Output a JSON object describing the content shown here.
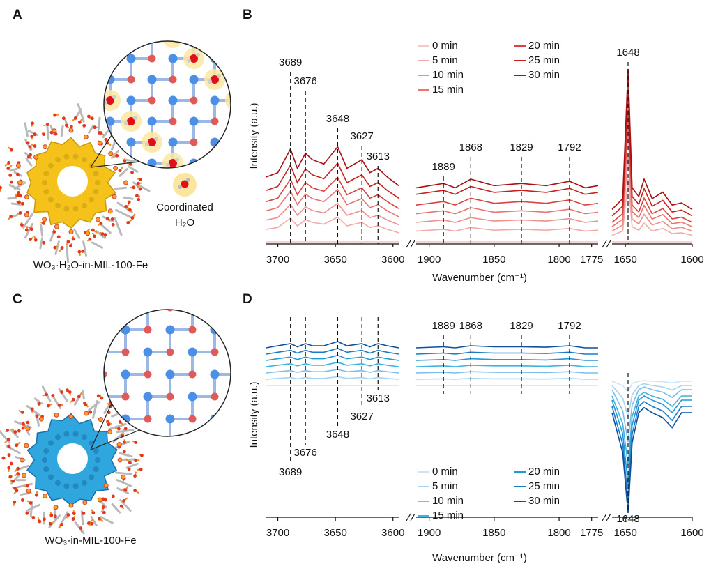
{
  "panel_a": {
    "letter": "A",
    "caption": "WO₃·H₂O-in-MIL-100-Fe",
    "annotation": [
      "Coordinated",
      "H₂O"
    ]
  },
  "panel_c": {
    "letter": "C",
    "caption": "WO₃-in-MIL-100-Fe"
  },
  "chart_data": [
    {
      "type": "line",
      "letter": "B",
      "ylabel": "Intensity (a.u.)",
      "xlabel": "Wavenumber (cm⁻¹)",
      "ylim": [
        0,
        100
      ],
      "segments": [
        {
          "xlim": [
            3710,
            3595
          ],
          "xticks": [
            3700,
            3650,
            3600
          ],
          "x": [
            3710,
            3700,
            3689,
            3683,
            3676,
            3670,
            3660,
            3648,
            3640,
            3627,
            3620,
            3613,
            3605,
            3595
          ]
        },
        {
          "xlim": [
            1910,
            1770
          ],
          "xticks": [
            1900,
            1850,
            1800,
            1775
          ],
          "x": [
            1910,
            1889,
            1880,
            1868,
            1850,
            1829,
            1810,
            1792,
            1780,
            1770
          ]
        },
        {
          "xlim": [
            1660,
            1600
          ],
          "xticks": [
            1650,
            1600
          ],
          "x": [
            1660,
            1652,
            1648,
            1645,
            1640,
            1636,
            1630,
            1622,
            1615,
            1608,
            1600
          ]
        }
      ],
      "peaks": [
        3689,
        3676,
        3648,
        3627,
        3613,
        1889,
        1868,
        1829,
        1792,
        1648
      ],
      "series": [
        {
          "name": "0 min",
          "color": "#f6c9c9",
          "values": [
            [
              1,
              1,
              1,
              1,
              1,
              1,
              1,
              1,
              1,
              1,
              1,
              1,
              1,
              1
            ],
            [
              1,
              1,
              1,
              1,
              1,
              1,
              1,
              1,
              1,
              1
            ],
            [
              1,
              1,
              1,
              1,
              1,
              1,
              1,
              1,
              1,
              1,
              1
            ]
          ]
        },
        {
          "name": "5 min",
          "color": "#f2aaa8",
          "values": [
            [
              6.8,
              7.6,
              12,
              8.4,
              11.2,
              10,
              9.2,
              12.4,
              8.4,
              10,
              7.6,
              8.4,
              6.8,
              5.2
            ],
            [
              6,
              6.8,
              6,
              7.6,
              6.4,
              6.8,
              6.4,
              7.2,
              6,
              6.4
            ],
            [
              4,
              6,
              30,
              8,
              6.4,
              9.6,
              6,
              7.2,
              4.8,
              5.2,
              4
            ]
          ]
        },
        {
          "name": "10 min",
          "color": "#ee8f8c",
          "values": [
            [
              11.1,
              12.2,
              18.3,
              13.3,
              17.2,
              15.5,
              14.4,
              18.8,
              13.3,
              15.5,
              12.2,
              13.3,
              11.1,
              8.9
            ],
            [
              10,
              11.1,
              10,
              12.2,
              10.6,
              11.1,
              10.6,
              11.7,
              10,
              10.6
            ],
            [
              6,
              8.8,
              41.8,
              11.5,
              9.3,
              13.7,
              8.8,
              10.4,
              7.1,
              7.7,
              6
            ]
          ]
        },
        {
          "name": "15 min",
          "color": "#e97470",
          "values": [
            [
              15.4,
              16.8,
              24.5,
              18.2,
              23.1,
              21,
              19.6,
              25.2,
              18.2,
              21,
              16.8,
              18.2,
              15.4,
              12.6
            ],
            [
              14,
              15.4,
              14,
              16.8,
              14.7,
              15.4,
              14.7,
              16.1,
              14,
              14.7
            ],
            [
              8,
              11.5,
              53.5,
              15,
              12.2,
              17.8,
              11.5,
              13.6,
              9.4,
              10.1,
              8
            ]
          ]
        },
        {
          "name": "20 min",
          "color": "#d9423f",
          "values": [
            [
              19.6,
              21.2,
              30,
              22.8,
              28.4,
              26,
              24.4,
              30.8,
              22.8,
              26,
              21.2,
              22.8,
              19.6,
              16.4
            ],
            [
              18,
              19.6,
              18,
              21.2,
              18.8,
              19.6,
              18.8,
              20.4,
              18,
              18.8
            ],
            [
              10,
              14,
              62,
              18,
              14.8,
              21.2,
              14,
              16.4,
              11.6,
              12.4,
              10
            ]
          ]
        },
        {
          "name": "25 min",
          "color": "#c8201f",
          "values": [
            [
              24.8,
              26.6,
              36.5,
              28.4,
              34.7,
              32,
              30.2,
              37.4,
              28.4,
              32,
              26.6,
              28.4,
              24.8,
              21.2
            ],
            [
              23,
              24.8,
              23,
              26.6,
              23.9,
              24.8,
              23.9,
              25.7,
              23,
              23.9
            ],
            [
              13,
              17.5,
              71.5,
              22,
              18.4,
              25.6,
              17.5,
              20.2,
              14.8,
              15.7,
              13
            ]
          ]
        },
        {
          "name": "30 min",
          "color": "#a80f14",
          "values": [
            [
              31,
              33,
              44,
              35,
              42,
              39,
              37,
              45,
              35,
              39,
              33,
              35,
              31,
              27
            ],
            [
              26,
              28,
              26,
              30,
              27,
              28,
              27,
              29,
              26,
              27
            ],
            [
              16,
              21,
              81,
              26,
              22,
              30,
              21,
              24,
              18,
              19,
              16
            ]
          ]
        }
      ]
    },
    {
      "type": "line",
      "letter": "D",
      "ylabel": "Intensity (a.u.)",
      "xlabel": "Wavenumber (cm⁻¹)",
      "ylim": [
        0,
        100
      ],
      "segments": [
        {
          "xlim": [
            3710,
            3595
          ],
          "xticks": [
            3700,
            3650,
            3600
          ],
          "x": [
            3710,
            3700,
            3689,
            3683,
            3676,
            3670,
            3660,
            3648,
            3640,
            3627,
            3620,
            3613,
            3605,
            3595
          ]
        },
        {
          "xlim": [
            1910,
            1770
          ],
          "xticks": [
            1900,
            1850,
            1800,
            1775
          ],
          "x": [
            1910,
            1889,
            1880,
            1868,
            1850,
            1829,
            1810,
            1792,
            1780,
            1770
          ]
        },
        {
          "xlim": [
            1660,
            1600
          ],
          "xticks": [
            1650,
            1600
          ],
          "x": [
            1660,
            1652,
            1648,
            1645,
            1640,
            1636,
            1630,
            1622,
            1615,
            1608,
            1600
          ]
        }
      ],
      "peaks": [
        3689,
        3676,
        3648,
        3627,
        3613,
        1889,
        1868,
        1829,
        1792,
        1648
      ],
      "series": [
        {
          "name": "0 min",
          "color": "#cde4f5",
          "values": [
            [
              63,
              63,
              63,
              63,
              63,
              63,
              63,
              63,
              63,
              63,
              63,
              63,
              63,
              63
            ],
            [
              63,
              63,
              63,
              63,
              63,
              63,
              63,
              63,
              63,
              63
            ],
            [
              65,
              63,
              60,
              64,
              65,
              65.3,
              65,
              64.8,
              64.2,
              65,
              65
            ]
          ]
        },
        {
          "name": "5 min",
          "color": "#a9d3f0",
          "values": [
            [
              66,
              66.4,
              66.8,
              66.2,
              66.8,
              66.4,
              66.4,
              67.2,
              66.4,
              66.8,
              66.2,
              66.8,
              66.4,
              66
            ],
            [
              66,
              66.2,
              66,
              66.4,
              66.2,
              66.2,
              66.1,
              66.4,
              66,
              66
            ],
            [
              63,
              57,
              48,
              58.5,
              63,
              63.8,
              63,
              62.3,
              60.8,
              63,
              63
            ]
          ]
        },
        {
          "name": "10 min",
          "color": "#7fbde8",
          "values": [
            [
              69,
              69.6,
              70.1,
              69.3,
              70.1,
              69.6,
              69.6,
              70.7,
              69.6,
              70.1,
              69.3,
              70.1,
              69.6,
              69
            ],
            [
              69,
              69.3,
              69,
              69.6,
              69.3,
              69.3,
              69.2,
              69.6,
              69,
              69
            ],
            [
              61,
              51,
              36,
              53.5,
              61,
              62.3,
              61,
              59.8,
              57.3,
              61,
              61
            ]
          ]
        },
        {
          "name": "15 min",
          "color": "#3eb2e0",
          "values": [
            [
              72,
              72.7,
              73.4,
              72.4,
              73.4,
              72.7,
              72.7,
              74.1,
              72.7,
              73.4,
              72.4,
              73.4,
              72.7,
              72
            ],
            [
              72,
              72.4,
              72,
              72.7,
              72.4,
              72.4,
              72.2,
              72.7,
              72,
              72
            ],
            [
              58,
              44.8,
              25,
              48.1,
              58,
              59.7,
              58,
              56.4,
              53,
              58,
              58
            ]
          ]
        },
        {
          "name": "20 min",
          "color": "#1f9ad6",
          "values": [
            [
              75,
              75.8,
              76.6,
              75.4,
              76.6,
              75.8,
              75.8,
              77.4,
              75.8,
              76.6,
              75.4,
              76.6,
              75.8,
              75
            ],
            [
              75,
              75.4,
              75,
              75.8,
              75.4,
              75.4,
              75.2,
              75.8,
              75,
              75
            ],
            [
              56,
              40,
              16,
              44,
              56,
              58,
              56,
              54,
              50,
              56,
              56
            ]
          ]
        },
        {
          "name": "25 min",
          "color": "#1a7bc8",
          "values": [
            [
              78,
              78.9,
              79.8,
              78.5,
              79.8,
              78.9,
              78.9,
              80.7,
              78.9,
              79.8,
              78.5,
              79.8,
              78.9,
              78
            ],
            [
              78,
              78.5,
              78,
              78.9,
              78.5,
              78.5,
              78.3,
              78.9,
              78,
              78
            ],
            [
              53,
              35,
              8,
              39.5,
              53,
              55.3,
              53,
              50.8,
              46.3,
              53,
              53
            ]
          ]
        },
        {
          "name": "30 min",
          "color": "#0d4fa0",
          "values": [
            [
              81,
              82,
              83,
              81.5,
              83,
              82,
              82,
              84,
              82,
              83,
              81.5,
              83,
              82,
              81
            ],
            [
              81,
              81.5,
              81,
              82,
              81.5,
              81.5,
              81.3,
              82,
              81,
              81
            ],
            [
              50,
              30.8,
              2,
              35.6,
              50,
              52.4,
              50,
              47.6,
              42.8,
              50,
              50
            ]
          ]
        }
      ]
    }
  ]
}
